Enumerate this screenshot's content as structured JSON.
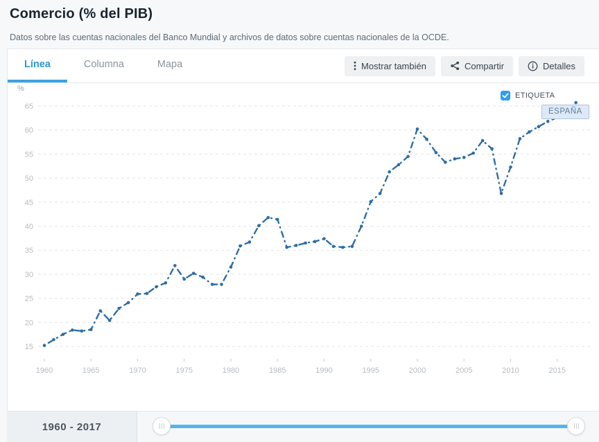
{
  "header": {
    "title": "Comercio (% del PIB)",
    "subtitle": "Datos sobre las cuentas nacionales del Banco Mundial y archivos de datos sobre cuentas nacionales de la OCDE."
  },
  "tabs": [
    {
      "label": "Línea",
      "active": true
    },
    {
      "label": "Columna",
      "active": false
    },
    {
      "label": "Mapa",
      "active": false
    }
  ],
  "toolbar": {
    "show_also_label": "Mostrar también",
    "share_label": "Compartir",
    "details_label": "Detalles"
  },
  "legend": {
    "checkbox_label": "ETIQUETA",
    "checkbox_checked": true,
    "series_label": "ESPAÑA"
  },
  "timeline": {
    "range_label": "1960 - 2017"
  },
  "colors": {
    "line": "#2e6da4",
    "accent_blue": "#3aa3e0",
    "checkbox_blue": "#2e9df2",
    "slider_track": "#55b3ee",
    "gridline": "#e1e4e7",
    "tick_text": "#b5bbc0"
  },
  "chart_data": {
    "type": "line",
    "title": "Comercio (% del PIB)",
    "unit_label": "%",
    "line_style": "dash-dot",
    "grid": "horizontal dashed",
    "legend_position": "top-right",
    "xlim": [
      1959.5,
      2018
    ],
    "ylim": [
      13,
      67
    ],
    "yticks": [
      15,
      20,
      25,
      30,
      35,
      40,
      45,
      50,
      55,
      60,
      65
    ],
    "xticks": [
      1960,
      1965,
      1970,
      1975,
      1980,
      1985,
      1990,
      1995,
      2000,
      2005,
      2010,
      2015
    ],
    "x": [
      1960,
      1961,
      1962,
      1963,
      1964,
      1965,
      1966,
      1967,
      1968,
      1969,
      1970,
      1971,
      1972,
      1973,
      1974,
      1975,
      1976,
      1977,
      1978,
      1979,
      1980,
      1981,
      1982,
      1983,
      1984,
      1985,
      1986,
      1987,
      1988,
      1989,
      1990,
      1991,
      1992,
      1993,
      1994,
      1995,
      1996,
      1997,
      1998,
      1999,
      2000,
      2001,
      2002,
      2003,
      2004,
      2005,
      2006,
      2007,
      2008,
      2009,
      2010,
      2011,
      2012,
      2013,
      2014,
      2015,
      2016,
      2017
    ],
    "series": [
      {
        "name": "ESPAÑA",
        "values": [
          15.2,
          16.4,
          17.5,
          18.4,
          18.2,
          18.5,
          22.4,
          20.4,
          22.9,
          24.1,
          25.9,
          26.0,
          27.4,
          28.2,
          31.8,
          29.0,
          30.2,
          29.4,
          27.9,
          27.9,
          31.5,
          35.9,
          36.7,
          40.1,
          41.8,
          41.4,
          35.6,
          36.0,
          36.5,
          36.8,
          37.4,
          35.8,
          35.6,
          35.8,
          40.0,
          45.1,
          46.8,
          51.3,
          52.8,
          54.5,
          60.2,
          58.1,
          55.3,
          53.3,
          54.0,
          54.3,
          55.2,
          57.8,
          56.1,
          46.8,
          52.3,
          58.2,
          59.6,
          60.7,
          61.8,
          62.6,
          63.4,
          65.7
        ]
      }
    ]
  }
}
